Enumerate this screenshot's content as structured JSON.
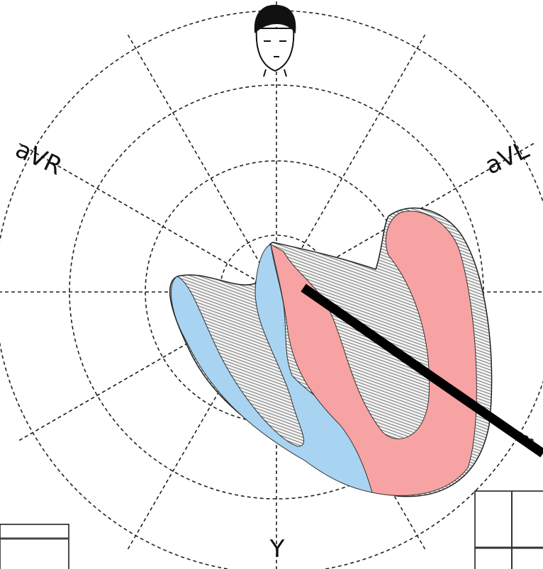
{
  "labels": {
    "left_lead": "aVR",
    "right_lead": "aVL",
    "bottom_lead": "Y"
  }
}
